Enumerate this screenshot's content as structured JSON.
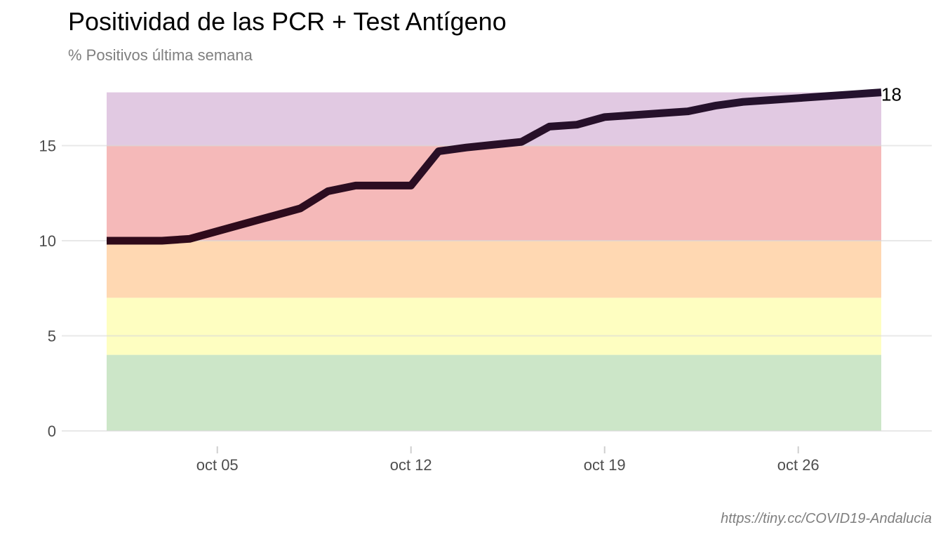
{
  "title": "Positividad de las PCR + Test Antígeno",
  "subtitle": "% Positivos última semana",
  "caption": "https://tiny.cc/COVID19-Andalucia",
  "chart_data": {
    "type": "line",
    "title": "Positividad de las PCR + Test Antígeno",
    "subtitle": "% Positivos última semana",
    "xlabel": "",
    "ylabel": "",
    "x_type": "date",
    "y_ticks": [
      0,
      5,
      10,
      15
    ],
    "x_ticks": [
      {
        "date": "2020-10-05",
        "label": "oct 05"
      },
      {
        "date": "2020-10-12",
        "label": "oct 12"
      },
      {
        "date": "2020-10-19",
        "label": "oct 19"
      },
      {
        "date": "2020-10-26",
        "label": "oct 26"
      }
    ],
    "xlim": [
      "2020-10-01",
      "2020-10-29"
    ],
    "ylim": [
      0,
      17.8
    ],
    "grid": "horizontal",
    "color_low": "#3d0000",
    "color_high": "#24122e",
    "end_label": "18",
    "bands": [
      {
        "from": 0,
        "to": 4,
        "color": "#cce6c8"
      },
      {
        "from": 4,
        "to": 7,
        "color": "#fefec1"
      },
      {
        "from": 7,
        "to": 10,
        "color": "#ffd8b2"
      },
      {
        "from": 10,
        "to": 15,
        "color": "#f5b9b9"
      },
      {
        "from": 15,
        "to": 17.8,
        "color": "#e1c9e2"
      }
    ],
    "series": [
      {
        "x": [
          "2020-10-01",
          "2020-10-02",
          "2020-10-03",
          "2020-10-04",
          "2020-10-05",
          "2020-10-06",
          "2020-10-07",
          "2020-10-08",
          "2020-10-09",
          "2020-10-10",
          "2020-10-11",
          "2020-10-12",
          "2020-10-13",
          "2020-10-14",
          "2020-10-15",
          "2020-10-16",
          "2020-10-17",
          "2020-10-18",
          "2020-10-19",
          "2020-10-20",
          "2020-10-21",
          "2020-10-22",
          "2020-10-23",
          "2020-10-24",
          "2020-10-25",
          "2020-10-26",
          "2020-10-27",
          "2020-10-28",
          "2020-10-29"
        ],
        "y": [
          10.0,
          10.0,
          10.0,
          10.1,
          10.5,
          10.9,
          11.3,
          11.7,
          12.6,
          12.9,
          12.9,
          12.9,
          14.7,
          14.9,
          15.05,
          15.2,
          16.0,
          16.1,
          16.5,
          16.6,
          16.7,
          16.8,
          17.1,
          17.3,
          17.4,
          17.5,
          17.6,
          17.7,
          17.8
        ]
      }
    ]
  }
}
